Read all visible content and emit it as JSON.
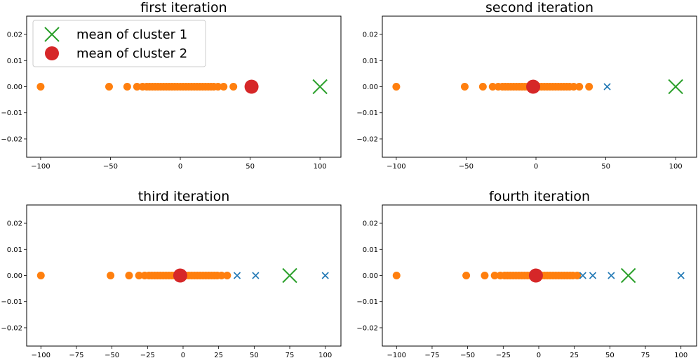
{
  "colors": {
    "points": "#ff7f0e",
    "excluded": "#1f77b4",
    "mean1": "#2ca02c",
    "mean2": "#d62728"
  },
  "chart_data": [
    {
      "type": "scatter",
      "title": "first iteration",
      "xlim": [
        -110,
        115
      ],
      "ylim": [
        -0.027,
        0.027
      ],
      "xticks": [
        -100,
        -50,
        0,
        50,
        100
      ],
      "yticks": [
        0.02,
        0.01,
        0.0,
        -0.01,
        -0.02
      ],
      "ytick_labels": [
        "0.02",
        "0.01",
        "0.00",
        "−0.01",
        "−0.02"
      ],
      "xtick_labels": [
        "−100",
        "−50",
        "0",
        "50",
        "100"
      ],
      "legend": {
        "position": "upper-left",
        "entries": [
          "mean of cluster 1",
          "mean of cluster 2"
        ]
      },
      "points_x": [
        -100,
        -51,
        -38,
        -31,
        -27,
        -24,
        -22,
        -20,
        -18,
        -16,
        -14,
        -12,
        -10,
        -8,
        -6,
        -4,
        -2,
        0,
        2,
        4,
        6,
        8,
        10,
        12,
        14,
        16,
        18,
        20,
        22,
        24,
        27,
        31,
        38
      ],
      "excluded_x": [],
      "mean1_x": 100,
      "mean2_x": 51
    },
    {
      "type": "scatter",
      "title": "second iteration",
      "xlim": [
        -110,
        115
      ],
      "ylim": [
        -0.027,
        0.027
      ],
      "xticks": [
        -100,
        -50,
        0,
        50,
        100
      ],
      "yticks": [
        0.02,
        0.01,
        0.0,
        -0.01,
        -0.02
      ],
      "ytick_labels": [
        "0.02",
        "0.01",
        "0.00",
        "−0.01",
        "−0.02"
      ],
      "xtick_labels": [
        "−100",
        "−50",
        "0",
        "50",
        "100"
      ],
      "points_x": [
        -100,
        -51,
        -38,
        -31,
        -27,
        -24,
        -22,
        -20,
        -18,
        -16,
        -14,
        -12,
        -10,
        -8,
        -6,
        -4,
        -2,
        0,
        2,
        4,
        6,
        8,
        10,
        12,
        14,
        16,
        18,
        20,
        22,
        24,
        27,
        31,
        38
      ],
      "excluded_x": [
        51
      ],
      "mean1_x": 100,
      "mean2_x": -2
    },
    {
      "type": "scatter",
      "title": "third iteration",
      "xlim": [
        -110,
        111
      ],
      "ylim": [
        -0.027,
        0.027
      ],
      "xticks": [
        -100,
        -75,
        -50,
        -25,
        0,
        25,
        50,
        75,
        100
      ],
      "yticks": [
        0.02,
        0.01,
        0.0,
        -0.01,
        -0.02
      ],
      "ytick_labels": [
        "0.02",
        "0.01",
        "0.00",
        "−0.01",
        "−0.02"
      ],
      "xtick_labels": [
        "−100",
        "−75",
        "−50",
        "−25",
        "0",
        "25",
        "50",
        "75",
        "100"
      ],
      "points_x": [
        -100,
        -51,
        -38,
        -31,
        -27,
        -24,
        -22,
        -20,
        -18,
        -16,
        -14,
        -12,
        -10,
        -8,
        -6,
        -4,
        -2,
        0,
        2,
        4,
        6,
        8,
        10,
        12,
        14,
        16,
        18,
        20,
        22,
        24,
        27,
        31
      ],
      "excluded_x": [
        38,
        51,
        100
      ],
      "mean1_x": 75,
      "mean2_x": -2
    },
    {
      "type": "scatter",
      "title": "fourth iteration",
      "xlim": [
        -110,
        111
      ],
      "ylim": [
        -0.027,
        0.027
      ],
      "xticks": [
        -100,
        -75,
        -50,
        -25,
        0,
        25,
        50,
        75,
        100
      ],
      "yticks": [
        0.02,
        0.01,
        0.0,
        -0.01,
        -0.02
      ],
      "ytick_labels": [
        "0.02",
        "0.01",
        "0.00",
        "−0.01",
        "−0.02"
      ],
      "xtick_labels": [
        "−100",
        "−75",
        "−50",
        "−25",
        "0",
        "25",
        "50",
        "75",
        "100"
      ],
      "points_x": [
        -100,
        -51,
        -38,
        -31,
        -27,
        -24,
        -22,
        -20,
        -18,
        -16,
        -14,
        -12,
        -10,
        -8,
        -6,
        -4,
        -2,
        0,
        2,
        4,
        6,
        8,
        10,
        12,
        14,
        16,
        18,
        20,
        22,
        24,
        27
      ],
      "excluded_x": [
        31,
        38,
        51,
        100
      ],
      "mean1_x": 63,
      "mean2_x": -2
    }
  ]
}
